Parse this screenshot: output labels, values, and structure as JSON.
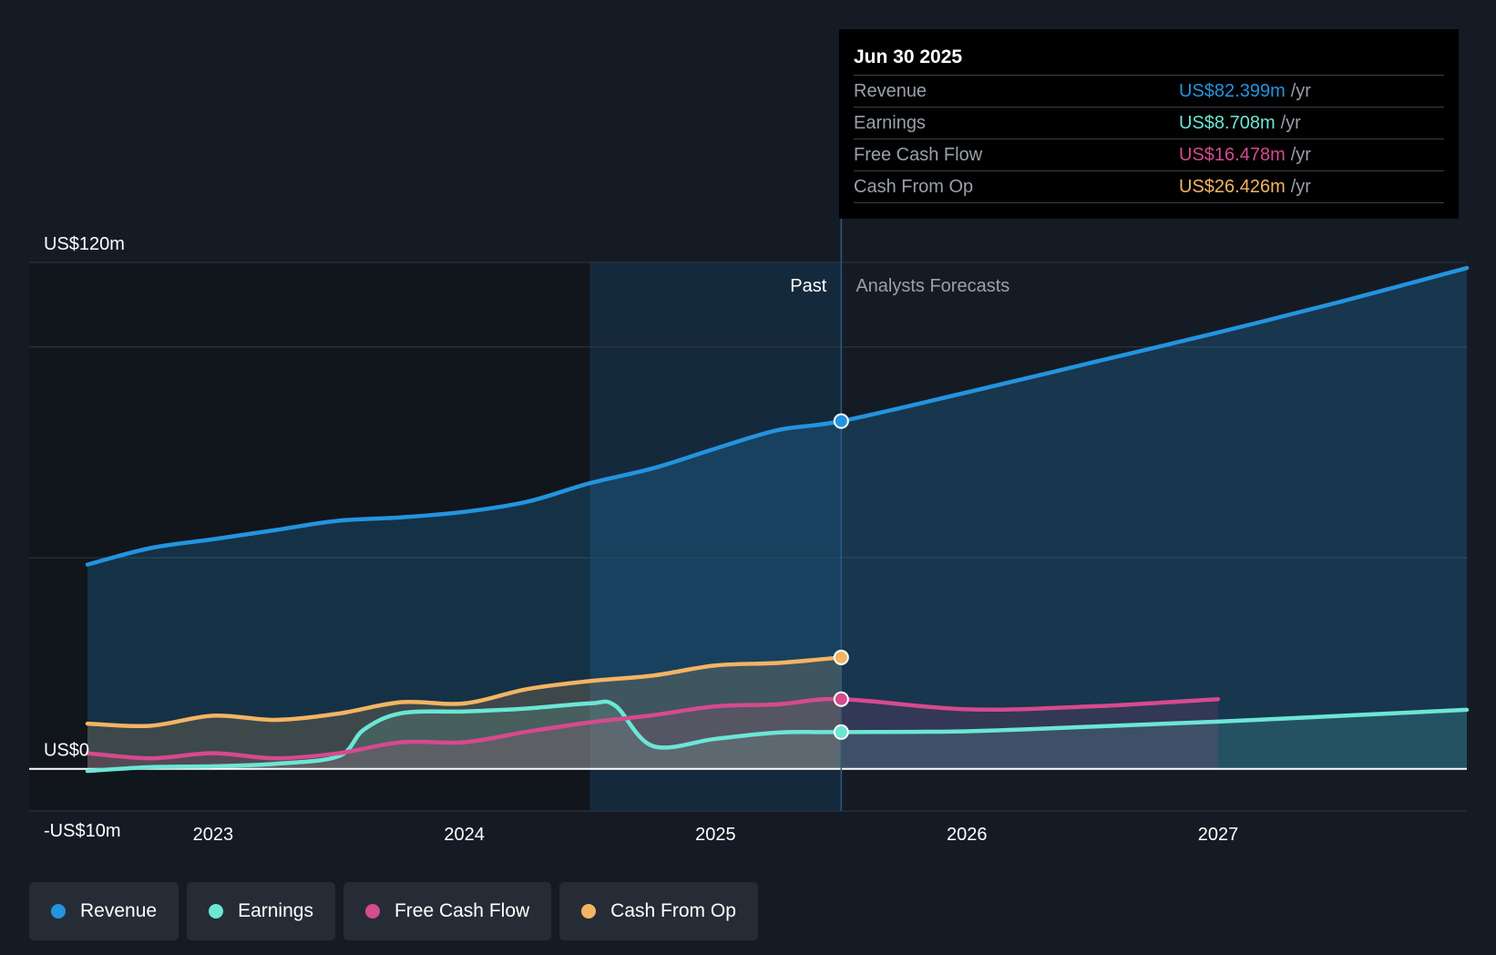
{
  "tooltip": {
    "date": "Jun 30 2025",
    "rows": [
      {
        "label": "Revenue",
        "value": "US$82.399m",
        "unit": "/yr",
        "color": "#2394df"
      },
      {
        "label": "Earnings",
        "value": "US$8.708m",
        "unit": "/yr",
        "color": "#6ce6d5"
      },
      {
        "label": "Free Cash Flow",
        "value": "US$16.478m",
        "unit": "/yr",
        "color": "#d64a8e"
      },
      {
        "label": "Cash From Op",
        "value": "US$26.426m",
        "unit": "/yr",
        "color": "#f3b463"
      }
    ]
  },
  "legend": [
    {
      "label": "Revenue",
      "color": "#2394df"
    },
    {
      "label": "Earnings",
      "color": "#6ce6d5"
    },
    {
      "label": "Free Cash Flow",
      "color": "#d64a8e"
    },
    {
      "label": "Cash From Op",
      "color": "#f3b463"
    }
  ],
  "chart_data": {
    "type": "line",
    "title": "",
    "ylim": [
      -10,
      120
    ],
    "y_tick_labels": [
      {
        "value": 120,
        "label": "US$120m"
      },
      {
        "value": 0,
        "label": "US$0"
      },
      {
        "value": -10,
        "label": "-US$10m"
      }
    ],
    "x_ticks": [
      2023,
      2024,
      2025,
      2026,
      2027
    ],
    "x_tick_labels": [
      "2023",
      "2024",
      "2025",
      "2026",
      "2027"
    ],
    "xlim": [
      2022.5,
      2027.99
    ],
    "past_label": "Past",
    "forecast_label": "Analysts Forecasts",
    "past_end": 2025.5,
    "highlight_start": 2024.5,
    "series": [
      {
        "name": "Revenue",
        "color": "#2394df",
        "area": true,
        "points": [
          [
            2022.5,
            48.4
          ],
          [
            2022.75,
            52.3
          ],
          [
            2023.0,
            54.4
          ],
          [
            2023.25,
            56.6
          ],
          [
            2023.5,
            58.8
          ],
          [
            2023.75,
            59.6
          ],
          [
            2024.0,
            60.9
          ],
          [
            2024.25,
            63.3
          ],
          [
            2024.5,
            67.7
          ],
          [
            2024.75,
            71.2
          ],
          [
            2025.0,
            75.9
          ],
          [
            2025.25,
            80.3
          ],
          [
            2025.5,
            82.4
          ],
          [
            2026.0,
            89.2
          ],
          [
            2026.5,
            96.3
          ],
          [
            2027.0,
            103.4
          ],
          [
            2027.5,
            110.9
          ],
          [
            2027.99,
            118.7
          ]
        ]
      },
      {
        "name": "Earnings",
        "color": "#6ce6d5",
        "area": true,
        "points": [
          [
            2022.5,
            -0.5
          ],
          [
            2022.75,
            0.4
          ],
          [
            2023.0,
            0.6
          ],
          [
            2023.25,
            1.2
          ],
          [
            2023.5,
            3.0
          ],
          [
            2023.6,
            9.3
          ],
          [
            2023.75,
            13.2
          ],
          [
            2024.0,
            13.6
          ],
          [
            2024.25,
            14.3
          ],
          [
            2024.5,
            15.5
          ],
          [
            2024.6,
            15.0
          ],
          [
            2024.75,
            5.4
          ],
          [
            2025.0,
            7.1
          ],
          [
            2025.25,
            8.6
          ],
          [
            2025.5,
            8.7
          ],
          [
            2026.0,
            8.9
          ],
          [
            2026.5,
            10.0
          ],
          [
            2027.0,
            11.2
          ],
          [
            2027.5,
            12.6
          ],
          [
            2027.99,
            14.0
          ]
        ]
      },
      {
        "name": "Free Cash Flow",
        "color": "#d64a8e",
        "area": true,
        "points": [
          [
            2022.5,
            3.7
          ],
          [
            2022.75,
            2.5
          ],
          [
            2023.0,
            3.7
          ],
          [
            2023.25,
            2.5
          ],
          [
            2023.5,
            3.7
          ],
          [
            2023.75,
            6.3
          ],
          [
            2024.0,
            6.3
          ],
          [
            2024.25,
            8.8
          ],
          [
            2024.5,
            11.0
          ],
          [
            2024.75,
            12.7
          ],
          [
            2025.0,
            14.8
          ],
          [
            2025.25,
            15.3
          ],
          [
            2025.5,
            16.5
          ],
          [
            2026.0,
            14.1
          ],
          [
            2026.5,
            14.8
          ],
          [
            2027.0,
            16.5
          ]
        ]
      },
      {
        "name": "Cash From Op",
        "color": "#f3b463",
        "area": true,
        "points": [
          [
            2022.5,
            10.7
          ],
          [
            2022.75,
            10.2
          ],
          [
            2023.0,
            12.6
          ],
          [
            2023.25,
            11.6
          ],
          [
            2023.5,
            13.1
          ],
          [
            2023.75,
            15.8
          ],
          [
            2024.0,
            15.5
          ],
          [
            2024.25,
            18.9
          ],
          [
            2024.5,
            20.8
          ],
          [
            2024.75,
            22.1
          ],
          [
            2025.0,
            24.5
          ],
          [
            2025.25,
            25.1
          ],
          [
            2025.5,
            26.4
          ]
        ]
      }
    ]
  }
}
